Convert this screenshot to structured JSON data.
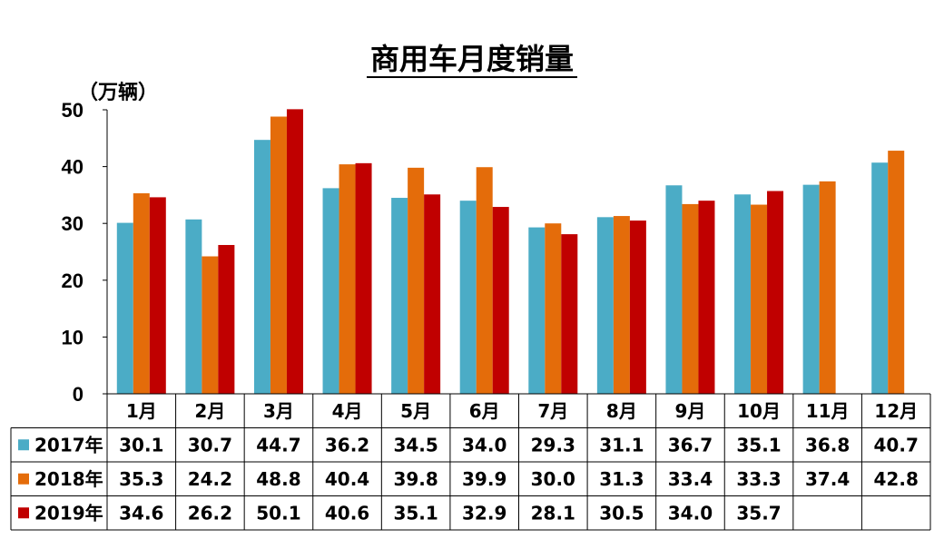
{
  "chart_data": {
    "type": "bar",
    "title": "商用车月度销量",
    "unit_label": "（万辆）",
    "categories": [
      "1月",
      "2月",
      "3月",
      "4月",
      "5月",
      "6月",
      "7月",
      "8月",
      "9月",
      "10月",
      "11月",
      "12月"
    ],
    "series": [
      {
        "name": "2017年",
        "color": "#4bacc6",
        "values": [
          30.1,
          30.7,
          44.7,
          36.2,
          34.5,
          34.0,
          29.3,
          31.1,
          36.7,
          35.1,
          36.8,
          40.7
        ],
        "labels": [
          "30.1",
          "30.7",
          "44.7",
          "36.2",
          "34.5",
          "34.0",
          "29.3",
          "31.1",
          "36.7",
          "35.1",
          "36.8",
          "40.7"
        ]
      },
      {
        "name": "2018年",
        "color": "#e46c0a",
        "values": [
          35.3,
          24.2,
          48.8,
          40.4,
          39.8,
          39.9,
          30.0,
          31.3,
          33.4,
          33.3,
          37.4,
          42.8
        ],
        "labels": [
          "35.3",
          "24.2",
          "48.8",
          "40.4",
          "39.8",
          "39.9",
          "30.0",
          "31.3",
          "33.4",
          "33.3",
          "37.4",
          "42.8"
        ]
      },
      {
        "name": "2019年",
        "color": "#c00000",
        "values": [
          34.6,
          26.2,
          50.1,
          40.6,
          35.1,
          32.9,
          28.1,
          30.5,
          34.0,
          35.7,
          null,
          null
        ],
        "labels": [
          "34.6",
          "26.2",
          "50.1",
          "40.6",
          "35.1",
          "32.9",
          "28.1",
          "30.5",
          "34.0",
          "35.7",
          "",
          ""
        ]
      }
    ],
    "ylim": [
      0,
      50
    ],
    "yticks": [
      "0",
      "10",
      "20",
      "30",
      "40",
      "50"
    ],
    "grid": false,
    "legend": "data-table-rows"
  }
}
